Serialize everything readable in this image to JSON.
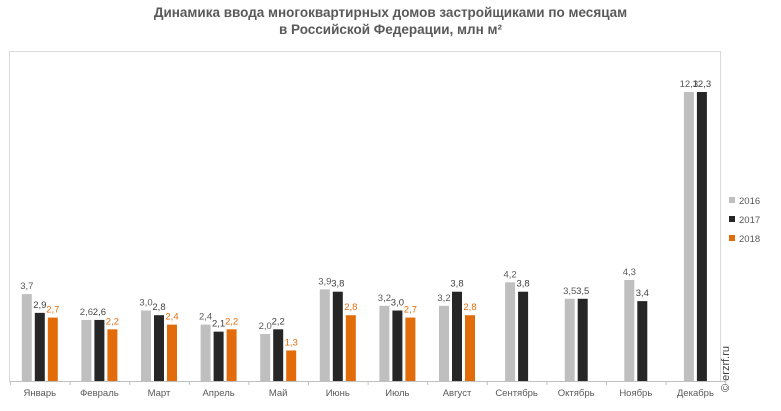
{
  "chart_data": {
    "type": "bar",
    "title_line1": "Динамика ввода многоквартирных домов застройщиками по месяцам",
    "title_line2": "в Российской  Федерации, млн м²",
    "categories": [
      "Январь",
      "Февраль",
      "Март",
      "Апрель",
      "Май",
      "Июнь",
      "Июль",
      "Август",
      "Сентябрь",
      "Октябрь",
      "Ноябрь",
      "Декабрь"
    ],
    "series": [
      {
        "name": "2016",
        "color": "#bfbfbf",
        "label_color": "#595959",
        "values": [
          3.7,
          2.6,
          3.0,
          2.4,
          2.0,
          3.9,
          3.2,
          3.2,
          4.2,
          3.5,
          4.3,
          12.3
        ],
        "labels": [
          "3,7",
          "2,6",
          "3,0",
          "2,4",
          "2,0",
          "3,9",
          "3,2",
          "3,2",
          "4,2",
          "3,5",
          "4,3",
          "12,3"
        ]
      },
      {
        "name": "2017",
        "color": "#262626",
        "label_color": "#404040",
        "values": [
          2.9,
          2.6,
          2.8,
          2.1,
          2.2,
          3.8,
          3.0,
          3.8,
          3.8,
          3.5,
          3.4,
          12.3
        ],
        "labels": [
          "2,9",
          "2,6",
          "2,8",
          "2,1",
          "2,2",
          "3,8",
          "3,0",
          "3,8",
          "3,8",
          "3,5",
          "3,4",
          "12,3"
        ]
      },
      {
        "name": "2018",
        "color": "#e36c0a",
        "label_color": "#e36c0a",
        "values": [
          2.7,
          2.2,
          2.4,
          2.2,
          1.3,
          2.8,
          2.7,
          2.8,
          null,
          null,
          null,
          null
        ],
        "labels": [
          "2,7",
          "2,2",
          "2,4",
          "2,2",
          "1,3",
          "2,8",
          "2,7",
          "2,8",
          "",
          "",
          "",
          ""
        ]
      }
    ],
    "ylim": [
      0,
      12.3
    ],
    "grid": false,
    "legend_position": "right",
    "source": "© erzrf.ru"
  }
}
